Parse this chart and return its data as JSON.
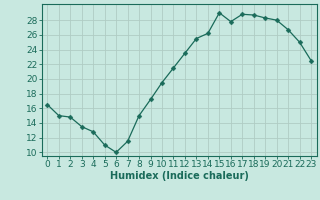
{
  "x": [
    0,
    1,
    2,
    3,
    4,
    5,
    6,
    7,
    8,
    9,
    10,
    11,
    12,
    13,
    14,
    15,
    16,
    17,
    18,
    19,
    20,
    21,
    22,
    23
  ],
  "y": [
    16.5,
    15.0,
    14.8,
    13.5,
    12.8,
    11.0,
    10.0,
    11.5,
    15.0,
    17.2,
    19.5,
    21.5,
    23.5,
    25.5,
    26.2,
    29.0,
    27.8,
    28.8,
    28.7,
    28.3,
    28.0,
    26.7,
    25.0,
    22.5
  ],
  "line_color": "#1a6b5a",
  "marker": "D",
  "marker_size": 2.5,
  "bg_color": "#c8e8e0",
  "grid_color": "#b0ccc4",
  "xlabel": "Humidex (Indice chaleur)",
  "ylabel_ticks": [
    10,
    12,
    14,
    16,
    18,
    20,
    22,
    24,
    26,
    28
  ],
  "ylim": [
    9.5,
    30.2
  ],
  "xlim": [
    -0.5,
    23.5
  ],
  "xticks": [
    0,
    1,
    2,
    3,
    4,
    5,
    6,
    7,
    8,
    9,
    10,
    11,
    12,
    13,
    14,
    15,
    16,
    17,
    18,
    19,
    20,
    21,
    22,
    23
  ],
  "axis_color": "#1a6b5a",
  "label_fontsize": 7,
  "tick_fontsize": 6.5
}
